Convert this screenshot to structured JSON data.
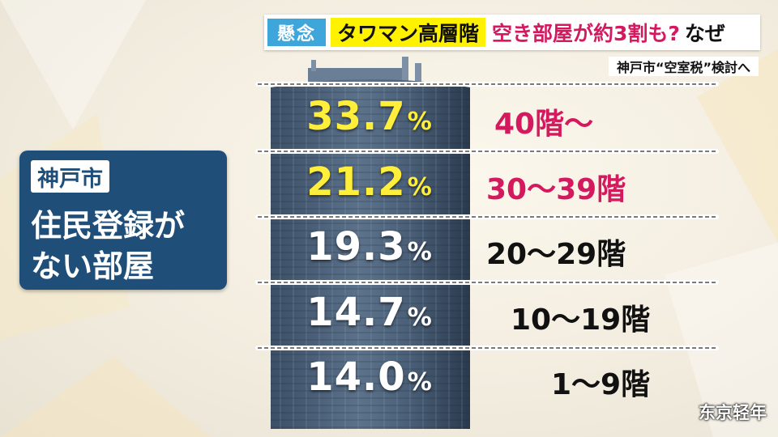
{
  "headline": {
    "badge": "懸念",
    "topic": "タワマン高層階",
    "question": "空き部屋が約3割も?",
    "why": "なぜ"
  },
  "subhead": "神戸市“空室税”検討へ",
  "label": {
    "city": "神戸市",
    "line1": "住民登録が",
    "line2": "ない部屋"
  },
  "colors": {
    "highlight_pct": "#ffee3a",
    "highlight_floor": "#d4195e",
    "normal_pct": "#ffffff",
    "normal_floor": "#111111",
    "box": "#1f4f79",
    "badge": "#3ea6da",
    "topic_bg": "#fff200"
  },
  "chart_data": {
    "type": "table",
    "rows": [
      {
        "floor": "40階〜",
        "value": 33.7,
        "pct_label": "33.7",
        "highlight": true
      },
      {
        "floor": "30〜39階",
        "value": 21.2,
        "pct_label": "21.2",
        "highlight": true
      },
      {
        "floor": "20〜29階",
        "value": 19.3,
        "pct_label": "19.3",
        "highlight": false
      },
      {
        "floor": "10〜19階",
        "value": 14.7,
        "pct_label": "14.7",
        "highlight": false
      },
      {
        "floor": "1〜9階",
        "value": 14.0,
        "pct_label": "14.0",
        "highlight": false
      }
    ],
    "unit": "%"
  },
  "watermark": "东京轻年"
}
